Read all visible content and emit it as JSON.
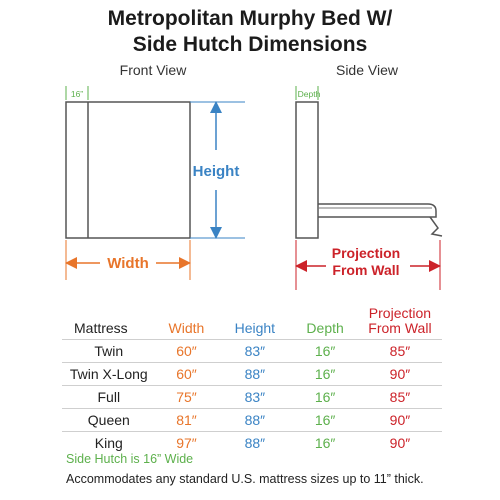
{
  "title": {
    "line1": "Metropolitan Murphy Bed W/",
    "line2": "Side Hutch Dimensions"
  },
  "front_view": {
    "label": "Front View",
    "hutch_label": "16”",
    "height_label": "Height",
    "width_label": "Width"
  },
  "side_view": {
    "label": "Side View",
    "depth_label": "Depth",
    "projection_label_line1": "Projection",
    "projection_label_line2": "From Wall"
  },
  "colors": {
    "width": "#e8752a",
    "height": "#3a83c4",
    "depth": "#5db04c",
    "projection": "#cc2229",
    "outline": "#555555"
  },
  "table": {
    "headers": {
      "mattress": "Mattress",
      "width": "Width",
      "height": "Height",
      "depth": "Depth",
      "projection_line1": "Projection",
      "projection_line2": "From Wall"
    },
    "rows": [
      {
        "mattress": "Twin",
        "width": "60″",
        "height": "83″",
        "depth": "16″",
        "projection": "85″"
      },
      {
        "mattress": "Twin X-Long",
        "width": "60″",
        "height": "88″",
        "depth": "16″",
        "projection": "90″"
      },
      {
        "mattress": "Full",
        "width": "75″",
        "height": "83″",
        "depth": "16″",
        "projection": "85″"
      },
      {
        "mattress": "Queen",
        "width": "81″",
        "height": "88″",
        "depth": "16″",
        "projection": "90″"
      },
      {
        "mattress": "King",
        "width": "97″",
        "height": "88″",
        "depth": "16″",
        "projection": "90″"
      }
    ]
  },
  "notes": {
    "hutch": "Side Hutch is 16” Wide",
    "sizes": "Accommodates any standard U.S. mattress sizes up to 11” thick."
  }
}
